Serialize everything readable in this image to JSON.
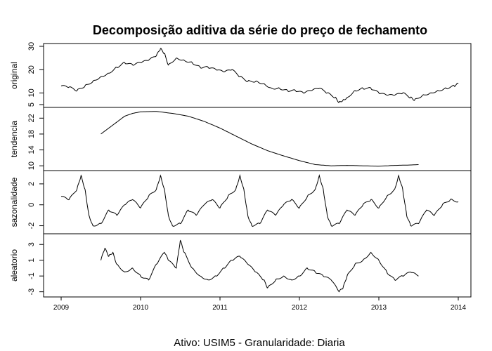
{
  "chart_data": {
    "type": "line",
    "title": "Decomposição aditiva da série do preço de fechamento",
    "caption": "Ativo:  USIM5  - Granularidade: Diaria",
    "x_ticks": [
      "2009",
      "2010",
      "2011",
      "2012",
      "2013",
      "2014"
    ],
    "x_range": [
      2009,
      2014
    ],
    "panels": [
      {
        "name": "original",
        "ylabel": "original",
        "y_range": [
          5,
          30
        ],
        "y_ticks": [
          "5",
          "10",
          "20",
          "30"
        ],
        "y_tick_values": [
          5,
          10,
          20,
          30
        ],
        "x_range": [
          2009.0,
          2014.0
        ],
        "points": [
          [
            2009.0,
            13
          ],
          [
            2009.1,
            12.5
          ],
          [
            2009.2,
            11
          ],
          [
            2009.3,
            13
          ],
          [
            2009.4,
            15
          ],
          [
            2009.5,
            17
          ],
          [
            2009.6,
            18.5
          ],
          [
            2009.7,
            21
          ],
          [
            2009.8,
            23
          ],
          [
            2009.9,
            22
          ],
          [
            2010.0,
            23
          ],
          [
            2010.1,
            24
          ],
          [
            2010.2,
            26
          ],
          [
            2010.25,
            29
          ],
          [
            2010.3,
            27
          ],
          [
            2010.35,
            22
          ],
          [
            2010.45,
            25
          ],
          [
            2010.55,
            24
          ],
          [
            2010.65,
            23
          ],
          [
            2010.75,
            21
          ],
          [
            2010.85,
            21
          ],
          [
            2010.95,
            20
          ],
          [
            2011.05,
            19
          ],
          [
            2011.15,
            20
          ],
          [
            2011.25,
            17
          ],
          [
            2011.35,
            15
          ],
          [
            2011.45,
            15
          ],
          [
            2011.55,
            14
          ],
          [
            2011.65,
            12
          ],
          [
            2011.75,
            12
          ],
          [
            2011.85,
            11
          ],
          [
            2011.95,
            11
          ],
          [
            2012.05,
            10
          ],
          [
            2012.15,
            11
          ],
          [
            2012.25,
            12
          ],
          [
            2012.35,
            10
          ],
          [
            2012.45,
            8
          ],
          [
            2012.5,
            6
          ],
          [
            2012.55,
            7
          ],
          [
            2012.6,
            8
          ],
          [
            2012.7,
            11
          ],
          [
            2012.8,
            12
          ],
          [
            2012.9,
            12
          ],
          [
            2013.0,
            10
          ],
          [
            2013.1,
            9
          ],
          [
            2013.2,
            9
          ],
          [
            2013.3,
            10
          ],
          [
            2013.4,
            8
          ],
          [
            2013.45,
            7
          ],
          [
            2013.55,
            9
          ],
          [
            2013.65,
            10
          ],
          [
            2013.75,
            11
          ],
          [
            2013.85,
            12
          ],
          [
            2013.95,
            13
          ],
          [
            2014.0,
            14
          ]
        ]
      },
      {
        "name": "tendencia",
        "ylabel": "tendencia",
        "y_range": [
          9.5,
          24
        ],
        "y_ticks": [
          "10",
          "14",
          "18",
          "22"
        ],
        "y_tick_values": [
          10,
          14,
          18,
          22
        ],
        "x_range": [
          2009.0,
          2014.0
        ],
        "points": [
          [
            2009.5,
            18
          ],
          [
            2009.6,
            19.5
          ],
          [
            2009.7,
            21
          ],
          [
            2009.8,
            22.5
          ],
          [
            2009.9,
            23.2
          ],
          [
            2010.0,
            23.6
          ],
          [
            2010.2,
            23.7
          ],
          [
            2010.4,
            23.2
          ],
          [
            2010.6,
            22.5
          ],
          [
            2010.8,
            21.2
          ],
          [
            2011.0,
            19.5
          ],
          [
            2011.2,
            17.5
          ],
          [
            2011.4,
            15.5
          ],
          [
            2011.6,
            13.8
          ],
          [
            2011.8,
            12.5
          ],
          [
            2012.0,
            11.3
          ],
          [
            2012.2,
            10.3
          ],
          [
            2012.4,
            10.0
          ],
          [
            2012.6,
            10.1
          ],
          [
            2012.8,
            10.0
          ],
          [
            2013.0,
            9.9
          ],
          [
            2013.2,
            10.1
          ],
          [
            2013.4,
            10.2
          ],
          [
            2013.5,
            10.3
          ]
        ]
      },
      {
        "name": "sazonalidade",
        "ylabel": "sazonalidade",
        "y_range": [
          -2.5,
          3
        ],
        "y_ticks": [
          "-2",
          "0",
          "2"
        ],
        "y_tick_values": [
          -2,
          0,
          2
        ],
        "x_range": [
          2009.0,
          2014.0
        ],
        "points": [
          [
            2009.0,
            0.8
          ],
          [
            2009.1,
            0.5
          ],
          [
            2009.2,
            1.5
          ],
          [
            2009.25,
            2.8
          ],
          [
            2009.3,
            1.5
          ],
          [
            2009.35,
            -1
          ],
          [
            2009.4,
            -2
          ],
          [
            2009.5,
            -1.8
          ],
          [
            2009.6,
            -0.5
          ],
          [
            2009.7,
            -1
          ],
          [
            2009.8,
            0
          ],
          [
            2009.9,
            0.5
          ],
          [
            2010.0,
            -0.3
          ],
          [
            2010.1,
            0.8
          ],
          [
            2010.2,
            1.5
          ],
          [
            2010.25,
            2.8
          ],
          [
            2010.3,
            1.5
          ],
          [
            2010.35,
            -1
          ],
          [
            2010.4,
            -2
          ],
          [
            2010.5,
            -1.8
          ],
          [
            2010.6,
            -0.5
          ],
          [
            2010.7,
            -1
          ],
          [
            2010.8,
            0
          ],
          [
            2010.9,
            0.5
          ],
          [
            2011.0,
            -0.3
          ],
          [
            2011.1,
            0.8
          ],
          [
            2011.2,
            1.5
          ],
          [
            2011.25,
            2.8
          ],
          [
            2011.3,
            1.5
          ],
          [
            2011.35,
            -1
          ],
          [
            2011.4,
            -2
          ],
          [
            2011.5,
            -1.8
          ],
          [
            2011.6,
            -0.5
          ],
          [
            2011.7,
            -1
          ],
          [
            2011.8,
            0
          ],
          [
            2011.9,
            0.5
          ],
          [
            2012.0,
            -0.3
          ],
          [
            2012.1,
            0.8
          ],
          [
            2012.2,
            1.5
          ],
          [
            2012.25,
            2.8
          ],
          [
            2012.3,
            1.5
          ],
          [
            2012.35,
            -1
          ],
          [
            2012.4,
            -2
          ],
          [
            2012.5,
            -1.8
          ],
          [
            2012.6,
            -0.5
          ],
          [
            2012.7,
            -1
          ],
          [
            2012.8,
            0
          ],
          [
            2012.9,
            0.5
          ],
          [
            2013.0,
            -0.3
          ],
          [
            2013.1,
            0.8
          ],
          [
            2013.2,
            1.5
          ],
          [
            2013.25,
            2.8
          ],
          [
            2013.3,
            1.5
          ],
          [
            2013.35,
            -1
          ],
          [
            2013.4,
            -2
          ],
          [
            2013.5,
            -1.8
          ],
          [
            2013.6,
            -0.5
          ],
          [
            2013.7,
            -1
          ],
          [
            2013.8,
            0
          ],
          [
            2013.9,
            0.5
          ],
          [
            2014.0,
            0.3
          ]
        ]
      },
      {
        "name": "aleatorio",
        "ylabel": "aleatorio",
        "y_range": [
          -3.3,
          4
        ],
        "y_ticks": [
          "-3",
          "-1",
          "1",
          "3"
        ],
        "y_tick_values": [
          -3,
          -1,
          1,
          3
        ],
        "x_range": [
          2009.0,
          2014.0
        ],
        "points": [
          [
            2009.5,
            1
          ],
          [
            2009.55,
            2.5
          ],
          [
            2009.6,
            1.5
          ],
          [
            2009.65,
            2
          ],
          [
            2009.7,
            0.5
          ],
          [
            2009.8,
            -0.5
          ],
          [
            2009.9,
            0
          ],
          [
            2010.0,
            -1
          ],
          [
            2010.1,
            -1.5
          ],
          [
            2010.2,
            0.5
          ],
          [
            2010.3,
            2
          ],
          [
            2010.35,
            1
          ],
          [
            2010.45,
            0
          ],
          [
            2010.5,
            3.5
          ],
          [
            2010.55,
            2
          ],
          [
            2010.65,
            0
          ],
          [
            2010.75,
            -1
          ],
          [
            2010.85,
            -1.5
          ],
          [
            2010.95,
            -1
          ],
          [
            2011.05,
            0
          ],
          [
            2011.15,
            1
          ],
          [
            2011.25,
            1.5
          ],
          [
            2011.35,
            0.5
          ],
          [
            2011.45,
            -0.5
          ],
          [
            2011.55,
            -1.5
          ],
          [
            2011.6,
            -2.5
          ],
          [
            2011.7,
            -1.5
          ],
          [
            2011.8,
            -1
          ],
          [
            2011.9,
            -1.5
          ],
          [
            2012.0,
            -1
          ],
          [
            2012.1,
            0
          ],
          [
            2012.2,
            -0.5
          ],
          [
            2012.3,
            -1
          ],
          [
            2012.4,
            -1.5
          ],
          [
            2012.5,
            -3
          ],
          [
            2012.55,
            -2.5
          ],
          [
            2012.6,
            -1
          ],
          [
            2012.7,
            0.5
          ],
          [
            2012.8,
            1
          ],
          [
            2012.9,
            2
          ],
          [
            2013.0,
            1
          ],
          [
            2013.1,
            -0.5
          ],
          [
            2013.2,
            -1.5
          ],
          [
            2013.3,
            -1
          ],
          [
            2013.4,
            -0.5
          ],
          [
            2013.5,
            -1
          ]
        ]
      }
    ]
  }
}
